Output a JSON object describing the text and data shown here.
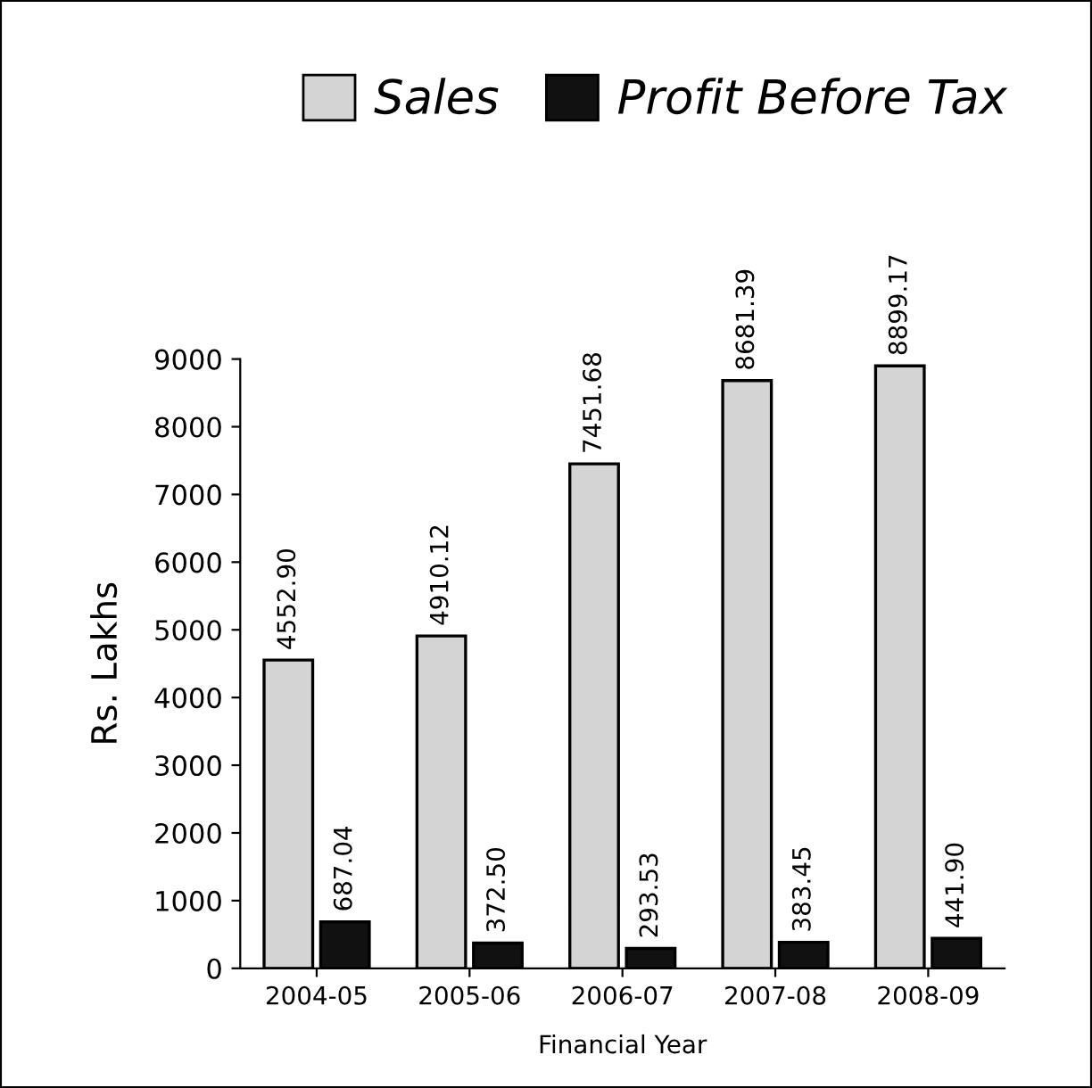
{
  "chart_data": {
    "type": "bar",
    "xlabel": "Financial Year",
    "ylabel": "Rs. Lakhs",
    "categories": [
      "2004-05",
      "2005-06",
      "2006-07",
      "2007-08",
      "2008-09"
    ],
    "series": [
      {
        "name": "Sales",
        "color": "#d4d4d4",
        "values": [
          4552.9,
          4910.12,
          7451.68,
          8681.39,
          8899.17
        ],
        "value_labels": [
          "4552.90",
          "4910.12",
          "7451.68",
          "8681.39",
          "8899.17"
        ]
      },
      {
        "name": "Profit Before Tax",
        "color": "#111111",
        "values": [
          687.04,
          372.5,
          293.53,
          383.45,
          441.9
        ],
        "value_labels": [
          "687.04",
          "372.50",
          "293.53",
          "383.45",
          "441.90"
        ]
      }
    ],
    "ylim": [
      0,
      9000
    ],
    "yticks": [
      0,
      1000,
      2000,
      3000,
      4000,
      5000,
      6000,
      7000,
      8000,
      9000
    ],
    "grid": false,
    "legend": "top"
  }
}
